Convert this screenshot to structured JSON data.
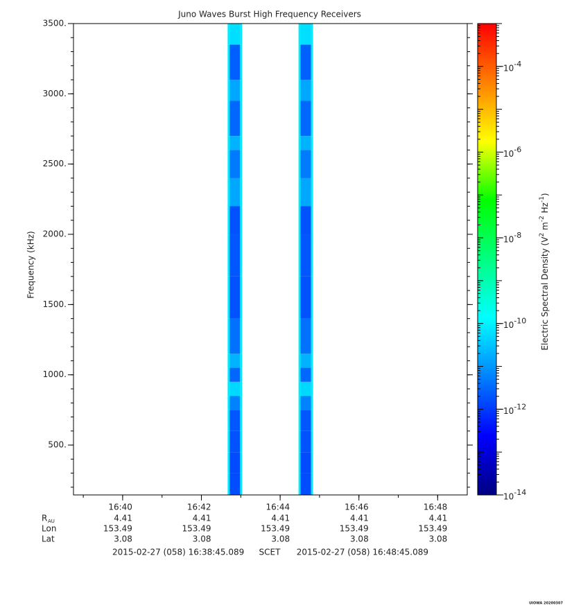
{
  "chart_data": {
    "type": "spectrogram",
    "title": "Juno Waves Burst High Frequency Receivers",
    "y_label": "Frequency (kHz)",
    "colorbar_label": "Electric Spectral Density (V2 m-2 Hz-1)",
    "xlim": [
      "2015-02-27 (058) 16:38:45.089",
      "2015-02-27 (058) 16:48:45.089"
    ],
    "time_system": "SCET",
    "xticks": [
      "16:40",
      "16:42",
      "16:44",
      "16:46",
      "16:48"
    ],
    "ylim": [
      145,
      3500
    ],
    "yticks": [
      {
        "value": 500,
        "label": "500."
      },
      {
        "value": 1000,
        "label": "1000."
      },
      {
        "value": 1500,
        "label": "1500."
      },
      {
        "value": 2000,
        "label": "2000."
      },
      {
        "value": 2500,
        "label": "2500."
      },
      {
        "value": 3000,
        "label": "3000."
      },
      {
        "value": 3500,
        "label": "3500."
      }
    ],
    "zlim": [
      1e-14,
      0.001
    ],
    "zscale": "log",
    "zticks": [
      {
        "value": 1e-14,
        "label": "10-14"
      },
      {
        "value": 1e-12,
        "label": "10-12"
      },
      {
        "value": 1e-10,
        "label": "10-10"
      },
      {
        "value": 1e-08,
        "label": "10-8"
      },
      {
        "value": 1e-06,
        "label": "10-6"
      },
      {
        "value": 0.0001,
        "label": "10-4"
      }
    ],
    "colormap": [
      "#000080",
      "#0000ff",
      "#0080ff",
      "#00ffff",
      "#00ff80",
      "#00ff00",
      "#ffff00",
      "#ff8000",
      "#ff0000"
    ],
    "bins": [
      145,
      300,
      450,
      600,
      750,
      850,
      950,
      1050,
      1150,
      1400,
      1700,
      2000,
      2200,
      2400,
      2600,
      2700,
      2950,
      3100,
      3350,
      3500
    ],
    "bursts": [
      {
        "time_edges": [
          "16:42:40",
          "16:42:43",
          "16:42:59",
          "16:43:02"
        ],
        "values": [
          [
            8e-11,
            8e-11,
            8e-11,
            8e-11,
            8e-11,
            8e-11,
            8e-11,
            8e-11,
            8e-11,
            8e-11,
            8e-11,
            8e-11,
            8e-11,
            8e-11,
            8e-11,
            8e-11,
            8e-11,
            8e-11,
            8e-11
          ],
          [
            1.6e-12,
            1.5e-12,
            1.8e-12,
            2e-12,
            6e-12,
            5e-11,
            3e-12,
            2e-11,
            4e-12,
            1.8e-12,
            2e-12,
            1.8e-12,
            1.5e-11,
            5e-12,
            2e-11,
            3e-12,
            1.5e-11,
            2.5e-12,
            6e-11
          ],
          [
            8e-11,
            8e-11,
            8e-11,
            8e-11,
            8e-11,
            8e-11,
            8e-11,
            8e-11,
            8e-11,
            8e-11,
            8e-11,
            8e-11,
            8e-11,
            8e-11,
            8e-11,
            8e-11,
            8e-11,
            8e-11,
            8e-11
          ]
        ]
      },
      {
        "time_edges": [
          "16:44:28",
          "16:44:31",
          "16:44:47",
          "16:44:50"
        ],
        "values": [
          [
            8e-11,
            8e-11,
            8e-11,
            8e-11,
            8e-11,
            8e-11,
            8e-11,
            8e-11,
            8e-11,
            8e-11,
            8e-11,
            8e-11,
            8e-11,
            8e-11,
            8e-11,
            8e-11,
            8e-11,
            8e-11,
            8e-11
          ],
          [
            1.6e-12,
            1.5e-12,
            1.8e-12,
            2e-12,
            6e-12,
            5e-11,
            3e-12,
            2e-11,
            4e-12,
            1.8e-12,
            2e-12,
            1.8e-12,
            1.5e-11,
            5e-12,
            2e-11,
            3e-12,
            1.5e-11,
            2.5e-12,
            6e-11
          ],
          [
            8e-11,
            8e-11,
            8e-11,
            8e-11,
            8e-11,
            8e-11,
            8e-11,
            8e-11,
            8e-11,
            8e-11,
            8e-11,
            8e-11,
            8e-11,
            8e-11,
            8e-11,
            8e-11,
            8e-11,
            8e-11,
            8e-11
          ]
        ]
      }
    ],
    "ephemeris": [
      {
        "label": "R",
        "sub": "AU",
        "values": [
          4.41,
          4.41,
          4.41,
          4.41,
          4.41
        ]
      },
      {
        "label": "Lon",
        "values": [
          153.49,
          153.49,
          153.49,
          153.49,
          153.49
        ]
      },
      {
        "label": "Lat",
        "values": [
          3.08,
          3.08,
          3.08,
          3.08,
          3.08
        ]
      }
    ],
    "credit": "UIOWA 20200307"
  }
}
